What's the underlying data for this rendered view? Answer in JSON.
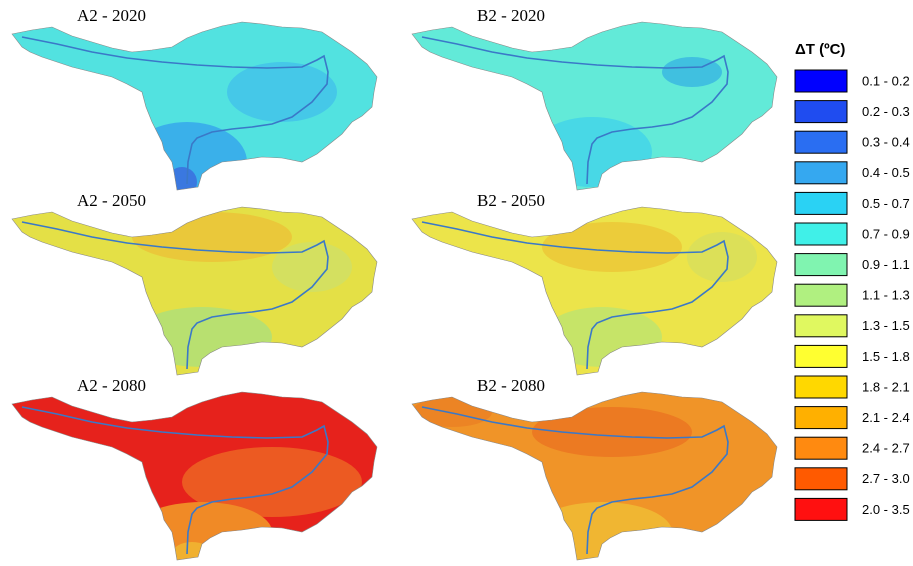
{
  "panels": [
    {
      "title": "A2 - 2020"
    },
    {
      "title": "B2 - 2020"
    },
    {
      "title": "A2 - 2050"
    },
    {
      "title": "B2 - 2050"
    },
    {
      "title": "A2 - 2080"
    },
    {
      "title": "B2 - 2080"
    }
  ],
  "legend": {
    "title": "ΔT (ºC)",
    "items": [
      {
        "label": "0.1 - 0.2",
        "color": "#0000ff"
      },
      {
        "label": "0.2 - 0.3",
        "color": "#1f4cf0"
      },
      {
        "label": "0.3 - 0.4",
        "color": "#2a6ef2"
      },
      {
        "label": "0.4 - 0.5",
        "color": "#35a8f0"
      },
      {
        "label": "0.5 - 0.7",
        "color": "#2ad2f4"
      },
      {
        "label": "0.7 - 0.9",
        "color": "#40f0e8"
      },
      {
        "label": "0.9 - 1.1",
        "color": "#80f4b0"
      },
      {
        "label": "1.1 - 1.3",
        "color": "#b0f080"
      },
      {
        "label": "1.3 - 1.5",
        "color": "#e0f860"
      },
      {
        "label": "1.5 - 1.8",
        "color": "#ffff30"
      },
      {
        "label": "1.8 - 2.1",
        "color": "#ffd800"
      },
      {
        "label": "2.1 - 2.4",
        "color": "#ffb000"
      },
      {
        "label": "2.4 - 2.7",
        "color": "#ff8a10"
      },
      {
        "label": "2.7 - 3.0",
        "color": "#ff5a00"
      },
      {
        "label": "2.0 - 3.5",
        "color": "#ff1010"
      }
    ]
  }
}
